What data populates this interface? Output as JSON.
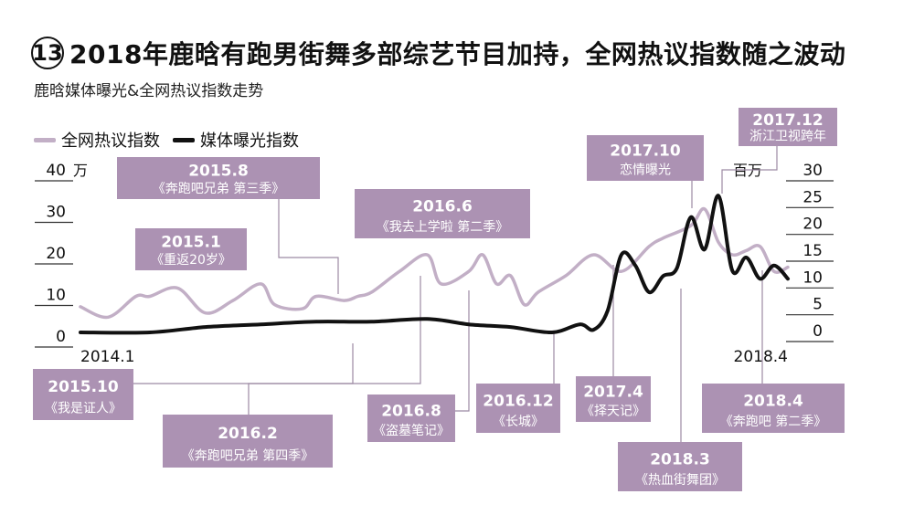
{
  "header": {
    "number": "13",
    "title": "2018年鹿晗有跑男街舞多部综艺节目加持，全网热议指数随之波动",
    "subtitle": "鹿晗媒体曝光&全网热议指数走势"
  },
  "colors": {
    "hot_series": "#c2afc6",
    "media_series": "#111111",
    "annotation_box": "#ac92b3",
    "connector": "#9c8aa3"
  },
  "chart_data": {
    "type": "line",
    "title": "鹿晗媒体曝光&全网热议指数走势",
    "legend_position": "top-left",
    "grid": false,
    "x_start_label": "2014.1",
    "x_end_label": "2018.4",
    "xlim": [
      "2014-01",
      "2018-04"
    ],
    "y_left": {
      "unit": "万",
      "ticks": [
        "0",
        "10",
        "20",
        "30",
        "40"
      ],
      "ylim": [
        0,
        40
      ]
    },
    "y_right": {
      "unit": "百万",
      "ticks": [
        "0",
        "5",
        "10",
        "15",
        "20",
        "25",
        "30"
      ],
      "ylim": [
        0,
        30
      ]
    },
    "series": [
      {
        "name": "全网热议指数",
        "axis": "left",
        "x": [
          "2014-01",
          "2014-03",
          "2014-05",
          "2014-06",
          "2014-08",
          "2014-10",
          "2014-12",
          "2015-02",
          "2015-03",
          "2015-05",
          "2015-06",
          "2015-08",
          "2015-09",
          "2015-10",
          "2015-12",
          "2016-02",
          "2016-03",
          "2016-05",
          "2016-06",
          "2016-07",
          "2016-08",
          "2016-09",
          "2016-10",
          "2016-12",
          "2017-02",
          "2017-04",
          "2017-06",
          "2017-07",
          "2017-09",
          "2017-10",
          "2017-11",
          "2017-12",
          "2018-01",
          "2018-02",
          "2018-03",
          "2018-04"
        ],
        "values": [
          7.5,
          5,
          10,
          10,
          12,
          6,
          9,
          13,
          8,
          7,
          10,
          9,
          10,
          11,
          16,
          20,
          13,
          16,
          20,
          13,
          15,
          8,
          11,
          15,
          20,
          16,
          22,
          24,
          27,
          31,
          23,
          20,
          21,
          22,
          16,
          17
        ]
      },
      {
        "name": "媒体曝光指数",
        "axis": "right",
        "x": [
          "2014-01",
          "2014-06",
          "2014-10",
          "2015-02",
          "2015-06",
          "2015-10",
          "2016-02",
          "2016-05",
          "2016-08",
          "2016-11",
          "2017-01",
          "2017-02",
          "2017-03",
          "2017-04",
          "2017-05",
          "2017-06",
          "2017-07",
          "2017-08",
          "2017-09",
          "2017-10",
          "2017-11",
          "2017-12",
          "2018-01",
          "2018-02",
          "2018-03",
          "2018-04"
        ],
        "values": [
          0,
          0,
          1,
          1.5,
          2,
          2,
          2.5,
          1.5,
          1,
          0,
          1.5,
          0.5,
          4,
          14.5,
          12.5,
          7.5,
          10.5,
          12,
          21.5,
          15.5,
          25.5,
          11.5,
          14,
          10,
          12.5,
          10
        ]
      }
    ],
    "annotations": [
      {
        "id": "a2015-8",
        "title": "2015.8",
        "label": "《奔跑吧兄弟 第三季》"
      },
      {
        "id": "a2015-1",
        "title": "2015.1",
        "label": "《重返20岁》"
      },
      {
        "id": "a2016-6",
        "title": "2016.6",
        "label": "《我去上学啦 第二季》"
      },
      {
        "id": "a2017-10",
        "title": "2017.10",
        "label": "恋情曝光"
      },
      {
        "id": "a2017-12",
        "title": "2017.12",
        "label": "浙江卫视跨年"
      },
      {
        "id": "a2015-10",
        "title": "2015.10",
        "label": "《我是证人》"
      },
      {
        "id": "a2016-2",
        "title": "2016.2",
        "label": "《奔跑吧兄弟 第四季》"
      },
      {
        "id": "a2016-8",
        "title": "2016.8",
        "label": "《盗墓笔记》"
      },
      {
        "id": "a2016-12",
        "title": "2016.12",
        "label": "《长城》"
      },
      {
        "id": "a2017-4",
        "title": "2017.4",
        "label": "《择天记》"
      },
      {
        "id": "a2018-3",
        "title": "2018.3",
        "label": "《热血街舞团》"
      },
      {
        "id": "a2018-4",
        "title": "2018.4",
        "label": "《奔跑吧 第二季》"
      }
    ]
  }
}
